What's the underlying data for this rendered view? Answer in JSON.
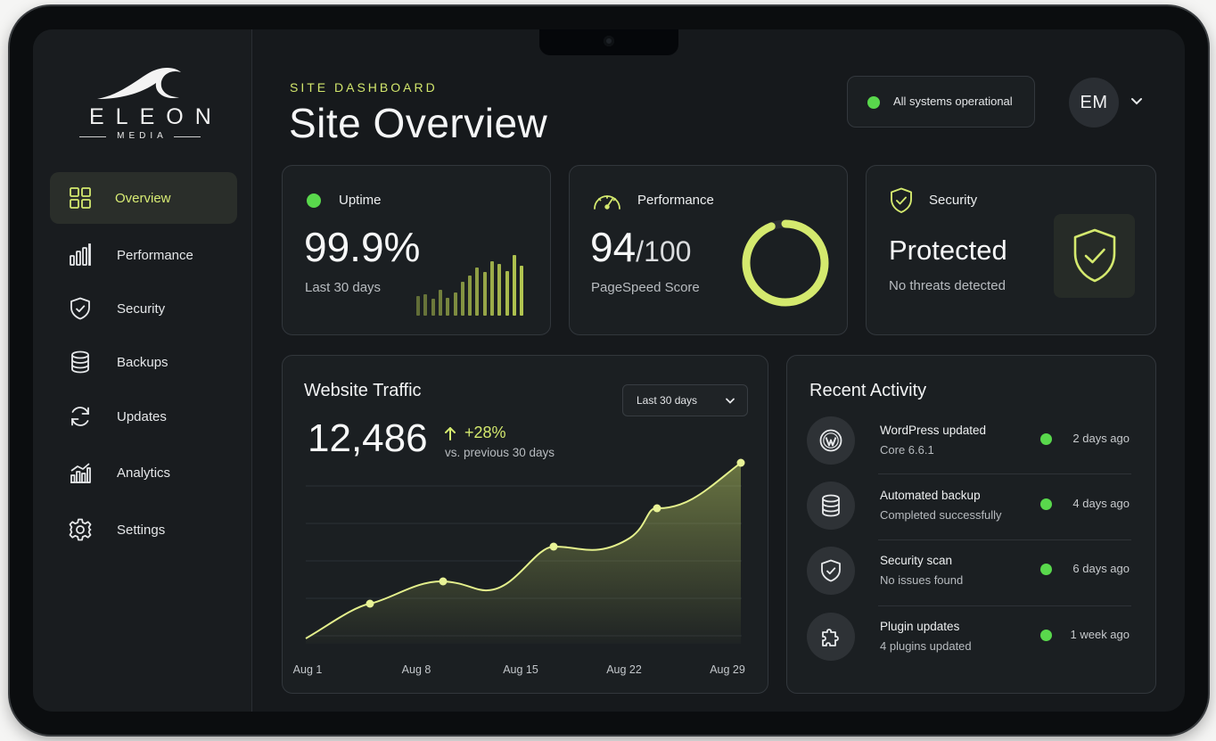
{
  "brand": {
    "wordmark": "ELEON",
    "sub": "MEDIA"
  },
  "sidebar": {
    "items": [
      {
        "label": "Overview",
        "icon": "grid-icon",
        "active": true
      },
      {
        "label": "Performance",
        "icon": "bar-chart-icon"
      },
      {
        "label": "Security",
        "icon": "shield-check-icon"
      },
      {
        "label": "Backups",
        "icon": "database-icon"
      },
      {
        "label": "Updates",
        "icon": "refresh-icon"
      },
      {
        "label": "Analytics",
        "icon": "analytics-icon"
      },
      {
        "label": "Settings",
        "icon": "gear-icon"
      }
    ]
  },
  "header": {
    "eyebrow": "SITE DASHBOARD",
    "title": "Site Overview",
    "status": "All systems operational",
    "avatar": "EM"
  },
  "uptime": {
    "title": "Uptime",
    "value": "99.9%",
    "sub": "Last 30 days",
    "sparkline": [
      0.32,
      0.36,
      0.28,
      0.42,
      0.3,
      0.38,
      0.56,
      0.66,
      0.8,
      0.72,
      0.9,
      0.86,
      0.74,
      1.0,
      0.82
    ]
  },
  "performance": {
    "title": "Performance",
    "score": "94",
    "out_of": "/100",
    "sub": "PageSpeed Score",
    "score_fraction": 0.94
  },
  "security": {
    "title": "Security",
    "status": "Protected",
    "sub": "No threats detected"
  },
  "traffic": {
    "title": "Website Traffic",
    "range": "Last 30 days",
    "total": "12,486",
    "change": "+28%",
    "change_sub": "vs. previous 30 days",
    "x_labels": [
      "Aug 1",
      "Aug 8",
      "Aug 15",
      "Aug 22",
      "Aug 29"
    ]
  },
  "activity": {
    "title": "Recent Activity",
    "items": [
      {
        "title": "WordPress updated",
        "sub": "Core 6.6.1",
        "time": "2 days ago",
        "icon": "wordpress-icon"
      },
      {
        "title": "Automated backup",
        "sub": "Completed successfully",
        "time": "4 days ago",
        "icon": "database-icon"
      },
      {
        "title": "Security scan",
        "sub": "No issues found",
        "time": "6 days ago",
        "icon": "shield-check-icon"
      },
      {
        "title": "Plugin updates",
        "sub": "4 plugins updated",
        "time": "1 week ago",
        "icon": "puzzle-icon"
      }
    ]
  },
  "colors": {
    "accent": "#d4e96e",
    "ok": "#59d84c",
    "bg": "#16191c",
    "card": "#1b1f22"
  }
}
